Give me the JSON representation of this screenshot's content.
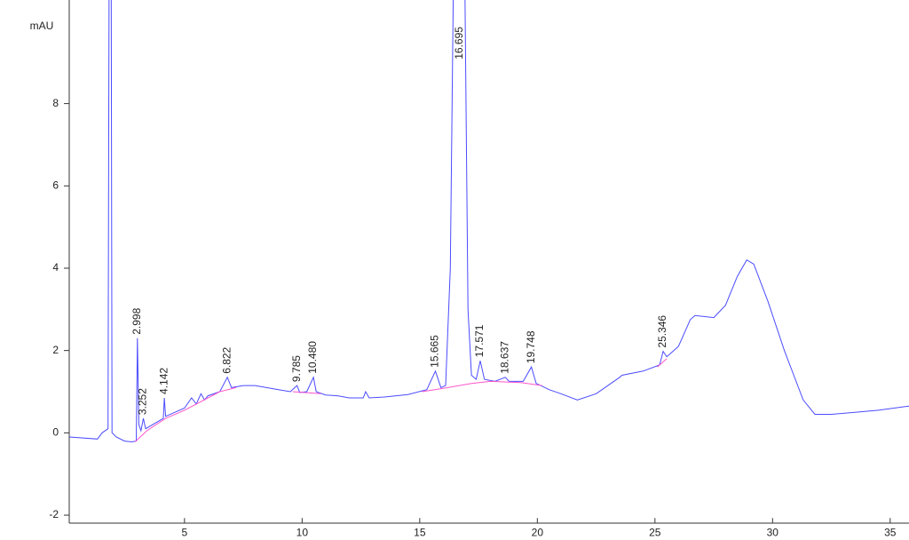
{
  "chart_data": {
    "type": "line",
    "y_label": "mAU",
    "xlim": [
      0.1,
      35.8
    ],
    "ylim": [
      -2.2,
      10.5
    ],
    "xticks": [
      5,
      10,
      15,
      20,
      25,
      30,
      35
    ],
    "yticks": [
      -2,
      0,
      2,
      4,
      6,
      8
    ],
    "grid": false,
    "series": [
      {
        "name": "signal",
        "color": "#4b4bff",
        "x": [
          0.1,
          1.3,
          1.5,
          1.75,
          1.8,
          1.88,
          1.92,
          2.1,
          2.45,
          2.75,
          2.95,
          3.0,
          3.06,
          3.15,
          3.25,
          3.35,
          4.1,
          4.14,
          4.2,
          5.0,
          5.3,
          5.5,
          5.7,
          5.85,
          6.0,
          6.5,
          6.82,
          7.0,
          7.5,
          8.0,
          9.0,
          9.5,
          9.785,
          9.9,
          10.2,
          10.48,
          10.6,
          11.0,
          11.5,
          12.0,
          12.6,
          12.7,
          12.85,
          13.5,
          14.5,
          15.3,
          15.665,
          15.9,
          16.1,
          16.3,
          16.45,
          16.9,
          17.05,
          17.2,
          17.4,
          17.571,
          17.75,
          18.2,
          18.637,
          18.8,
          19.4,
          19.748,
          19.95,
          20.5,
          21.0,
          21.7,
          22.5,
          23.5,
          23.6,
          24.5,
          25.2,
          25.346,
          25.5,
          25.7,
          26.0,
          26.5,
          26.7,
          27.5,
          28.0,
          28.5,
          28.9,
          29.2,
          29.8,
          30.5,
          31.3,
          31.8,
          32.5,
          33.5,
          34.5,
          35.8
        ],
        "values": [
          -0.1,
          -0.15,
          0.0,
          0.1,
          12,
          12,
          0.0,
          -0.1,
          -0.2,
          -0.22,
          -0.2,
          2.3,
          0.2,
          0.05,
          0.35,
          0.1,
          0.35,
          0.85,
          0.4,
          0.6,
          0.85,
          0.7,
          0.95,
          0.8,
          0.9,
          1.0,
          1.35,
          1.1,
          1.15,
          1.15,
          1.05,
          1.0,
          1.15,
          0.98,
          1.0,
          1.35,
          1.0,
          0.92,
          0.9,
          0.85,
          0.85,
          1.0,
          0.85,
          0.87,
          0.93,
          1.05,
          1.5,
          1.1,
          1.15,
          4,
          12,
          12,
          3,
          1.4,
          1.3,
          1.75,
          1.3,
          1.25,
          1.35,
          1.25,
          1.25,
          1.6,
          1.2,
          1.05,
          0.95,
          0.8,
          0.95,
          1.35,
          1.4,
          1.5,
          1.65,
          1.98,
          1.85,
          1.95,
          2.1,
          2.75,
          2.85,
          2.8,
          3.1,
          3.8,
          4.2,
          4.1,
          3.2,
          2.0,
          0.8,
          0.45,
          0.45,
          0.5,
          0.55,
          0.65
        ]
      },
      {
        "name": "baseline",
        "color": "#ff55cc",
        "x": [
          2.9,
          3.4,
          4.2,
          5.0,
          6.5,
          7.2,
          null,
          9.6,
          10.8,
          null,
          15.1,
          16.2,
          17.2,
          18.0,
          19.3,
          20.2,
          null,
          25.1,
          25.5
        ],
        "values": [
          -0.22,
          0.05,
          0.35,
          0.55,
          1.0,
          1.1,
          null,
          1.0,
          0.95,
          null,
          1.0,
          1.1,
          1.2,
          1.25,
          1.22,
          1.15,
          null,
          1.6,
          1.8
        ]
      }
    ],
    "peaks": [
      {
        "x": 2.998,
        "y": 2.3,
        "label": "2.998"
      },
      {
        "x": 3.252,
        "y": 0.35,
        "label": "3.252"
      },
      {
        "x": 4.142,
        "y": 0.85,
        "label": "4.142"
      },
      {
        "x": 6.822,
        "y": 1.35,
        "label": "6.822"
      },
      {
        "x": 9.785,
        "y": 1.15,
        "label": "9.785"
      },
      {
        "x": 10.48,
        "y": 1.35,
        "label": "10.480"
      },
      {
        "x": 15.665,
        "y": 1.5,
        "label": "15.665"
      },
      {
        "x": 16.695,
        "y": 12,
        "label": "16.695"
      },
      {
        "x": 17.571,
        "y": 1.75,
        "label": "17.571"
      },
      {
        "x": 18.637,
        "y": 1.35,
        "label": "18.637"
      },
      {
        "x": 19.748,
        "y": 1.6,
        "label": "19.748"
      },
      {
        "x": 25.346,
        "y": 1.98,
        "label": "25.346"
      }
    ]
  }
}
